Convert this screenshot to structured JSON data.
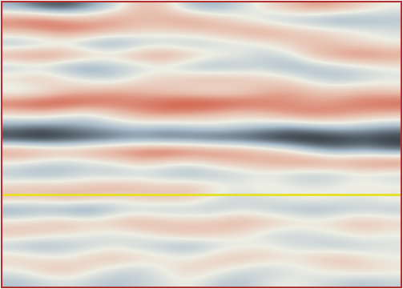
{
  "chart_data": {
    "type": "heatmap",
    "tick_labels": false,
    "clim": [
      -1,
      1
    ],
    "cells": [
      [
        -0.4,
        -0.7,
        -0.8,
        -0.5,
        -0.2,
        0.3,
        0.2,
        -0.3,
        -0.4,
        -0.2,
        0.1,
        0.3,
        0.5,
        0.4,
        0.2,
        0.0
      ],
      [
        0.6,
        0.7,
        0.5,
        0.4,
        0.5,
        0.3,
        0.4,
        0.5,
        0.3,
        0.1,
        -0.2,
        -0.3,
        -0.4,
        -0.5,
        -0.4,
        -0.3
      ],
      [
        0.3,
        0.4,
        0.6,
        0.5,
        0.3,
        0.2,
        0.1,
        0.2,
        0.3,
        0.4,
        0.5,
        0.3,
        0.2,
        0.1,
        0.0,
        -0.1
      ],
      [
        -0.4,
        -0.3,
        -0.2,
        -0.4,
        -0.5,
        -0.3,
        -0.2,
        -0.3,
        -0.2,
        -0.1,
        0.0,
        0.2,
        0.3,
        0.2,
        0.1,
        0.0
      ],
      [
        0.5,
        0.6,
        0.5,
        0.3,
        0.2,
        0.4,
        0.5,
        0.3,
        0.1,
        0.0,
        -0.2,
        -0.1,
        0.3,
        0.5,
        0.6,
        0.5
      ],
      [
        -0.3,
        -0.2,
        -0.4,
        -0.5,
        -0.3,
        -0.2,
        -0.1,
        -0.3,
        -0.4,
        -0.3,
        -0.2,
        -0.4,
        -0.3,
        -0.2,
        -0.1,
        0.0
      ],
      [
        0.2,
        0.3,
        0.1,
        -0.1,
        -0.2,
        0.1,
        0.2,
        0.3,
        0.4,
        0.3,
        0.2,
        0.1,
        -0.2,
        -0.3,
        -0.2,
        -0.1
      ],
      [
        -0.2,
        -0.1,
        0.2,
        0.3,
        0.4,
        0.3,
        0.2,
        0.1,
        0.0,
        0.1,
        0.3,
        0.4,
        0.3,
        0.2,
        0.3,
        0.2
      ],
      [
        0.7,
        0.8,
        0.8,
        0.7,
        0.6,
        0.6,
        0.7,
        0.8,
        0.8,
        0.7,
        0.6,
        0.5,
        0.4,
        0.5,
        0.6,
        0.7
      ],
      [
        0.1,
        0.2,
        0.0,
        -0.1,
        0.2,
        0.4,
        0.5,
        0.4,
        0.3,
        0.2,
        0.3,
        0.5,
        0.6,
        0.5,
        0.4,
        0.3
      ],
      [
        -0.5,
        -0.6,
        -0.5,
        -0.4,
        -0.3,
        -0.2,
        -0.3,
        -0.2,
        -0.1,
        -0.2,
        -0.3,
        -0.4,
        -0.3,
        -0.2,
        -0.3,
        -0.4
      ],
      [
        -0.9,
        -1.0,
        -0.9,
        -0.8,
        -0.7,
        -0.6,
        -0.7,
        -0.7,
        -0.8,
        -0.8,
        -0.9,
        -1.0,
        -1.0,
        -0.9,
        -0.8,
        -0.9
      ],
      [
        0.6,
        0.5,
        0.4,
        0.5,
        0.6,
        0.7,
        0.8,
        0.7,
        0.6,
        0.5,
        0.3,
        0.1,
        -0.3,
        -0.5,
        -0.4,
        -0.6
      ],
      [
        0.0,
        -0.1,
        -0.2,
        -0.1,
        0.0,
        0.2,
        0.1,
        0.0,
        0.2,
        0.3,
        0.4,
        0.5,
        0.6,
        0.5,
        0.6,
        0.7
      ],
      [
        -0.3,
        -0.4,
        -0.3,
        -0.2,
        -0.3,
        -0.2,
        -0.3,
        -0.4,
        -0.3,
        -0.2,
        -0.1,
        -0.2,
        -0.3,
        -0.2,
        -0.1,
        -0.2
      ],
      [
        0.2,
        0.3,
        0.2,
        0.3,
        0.4,
        0.3,
        0.2,
        0.3,
        0.1,
        0.0,
        0.1,
        0.0,
        -0.1,
        0.0,
        0.1,
        0.0
      ],
      [
        0.3,
        0.2,
        0.4,
        0.3,
        0.1,
        0.2,
        0.3,
        0.2,
        0.0,
        -0.2,
        -0.1,
        0.0,
        0.1,
        0.0,
        -0.1,
        0.1
      ],
      [
        -0.5,
        -0.4,
        -0.5,
        -0.6,
        -0.3,
        -0.2,
        -0.3,
        -0.2,
        -0.3,
        -0.1,
        -0.2,
        -0.3,
        -0.4,
        -0.3,
        -0.2,
        -0.3
      ],
      [
        0.1,
        0.2,
        0.3,
        0.2,
        0.3,
        0.4,
        0.3,
        0.2,
        0.3,
        0.4,
        0.3,
        0.2,
        0.1,
        0.2,
        0.3,
        0.2
      ],
      [
        0.3,
        0.2,
        0.1,
        0.0,
        -0.1,
        0.0,
        0.2,
        0.3,
        0.2,
        0.1,
        -0.1,
        -0.2,
        -0.1,
        0.0,
        0.1,
        0.0
      ],
      [
        -0.3,
        -0.4,
        -0.3,
        -0.2,
        -0.1,
        -0.2,
        -0.3,
        -0.4,
        -0.2,
        -0.1,
        0.0,
        -0.1,
        -0.2,
        -0.3,
        -0.2,
        -0.1
      ],
      [
        0.2,
        0.1,
        0.0,
        0.2,
        0.3,
        0.2,
        0.1,
        0.0,
        0.2,
        0.3,
        0.2,
        0.1,
        0.2,
        0.3,
        0.1,
        0.0
      ],
      [
        0.0,
        0.2,
        0.3,
        0.1,
        -0.1,
        -0.2,
        0.0,
        0.2,
        0.1,
        -0.1,
        -0.2,
        -0.1,
        0.0,
        0.1,
        0.2,
        0.1
      ],
      [
        -0.3,
        -0.2,
        -0.1,
        -0.2,
        -0.3,
        -0.2,
        -0.1,
        0.0,
        -0.2,
        -0.3,
        -0.1,
        0.0,
        -0.1,
        -0.2,
        -0.3,
        -0.2
      ]
    ],
    "horizon": {
      "row": 16.2,
      "color": "#e6e020"
    }
  }
}
